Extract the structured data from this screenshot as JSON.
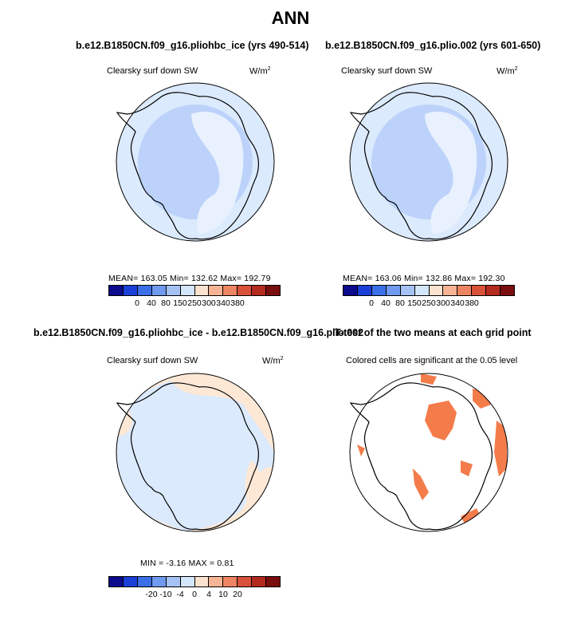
{
  "main_title": "ANN",
  "panels": [
    {
      "title": "b.e12.B1850CN.f09_g16.pliohbc_ice (yrs 490-514)",
      "variable": "Clearsky surf down SW",
      "units": "W/m",
      "units_sup": "2",
      "stats": "MEAN= 163.05   Min= 132.62   Max= 192.79",
      "colorbar_labels": [
        "0",
        "40",
        "80",
        "150",
        "250",
        "300",
        "340",
        "380"
      ]
    },
    {
      "title": "b.e12.B1850CN.f09_g16.plio.002 (yrs 601-650)",
      "variable": "Clearsky surf down SW",
      "units": "W/m",
      "units_sup": "2",
      "stats": "MEAN= 163.06   Min= 132.86   Max= 192.30",
      "colorbar_labels": [
        "0",
        "40",
        "80",
        "150",
        "250",
        "300",
        "340",
        "380"
      ]
    },
    {
      "title": "b.e12.B1850CN.f09_g16.pliohbc_ice - b.e12.B1850CN.f09_g16.plio.002",
      "variable": "Clearsky surf down SW",
      "units": "W/m",
      "units_sup": "2",
      "stats": "MIN =   -3.16  MAX =    0.81",
      "colorbar_labels": [
        "-20",
        "-10",
        "-4",
        "0",
        "4",
        "10",
        "20"
      ]
    },
    {
      "title": "T-test of the two means at each grid point",
      "variable": "Colored cells are significant at the 0.05 level"
    }
  ],
  "colorbar_colors_abs": [
    "#0b0b8c",
    "#1a3fd6",
    "#3b6fe8",
    "#6f9af0",
    "#a5c2f5",
    "#d4e6fa",
    "#fbe2cf",
    "#f7b494",
    "#ee8562",
    "#d9513a",
    "#b52a1e",
    "#7a0d0d"
  ],
  "colorbar_colors_diff": [
    "#0b0b8c",
    "#1a3fd6",
    "#3b6fe8",
    "#6f9af0",
    "#a5c2f5",
    "#d4e6fa",
    "#fbe2cf",
    "#f7b494",
    "#ee8562",
    "#d9513a",
    "#b52a1e",
    "#7a0d0d"
  ],
  "map_colors": {
    "ocean_abs": "#dbeafc",
    "inner_abs": "#bcd2fa",
    "plateau_abs": "#e8f1fd",
    "diff_warm": "#fde8d6",
    "diff_cool": "#dbeafc",
    "significant": "#f47c4a"
  }
}
